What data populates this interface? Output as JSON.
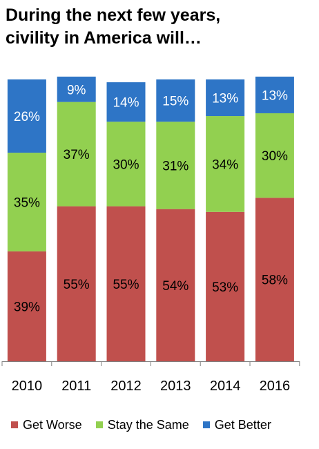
{
  "title_lines": [
    "During the next few years,",
    "civility in America will…"
  ],
  "colors": {
    "worse": "#c0504d",
    "same": "#92d050",
    "better": "#2e75c6",
    "axis": "#808080"
  },
  "chart_data": {
    "type": "bar",
    "stacked": true,
    "categories": [
      "2010",
      "2011",
      "2012",
      "2013",
      "2014",
      "2016"
    ],
    "series": [
      {
        "name": "Get Worse",
        "values": [
          39,
          55,
          55,
          54,
          53,
          58
        ],
        "labels": [
          "39%",
          "55%",
          "55%",
          "54%",
          "53%",
          "58%"
        ]
      },
      {
        "name": "Stay the Same",
        "values": [
          35,
          37,
          30,
          31,
          34,
          30
        ],
        "labels": [
          "35%",
          "37%",
          "30%",
          "31%",
          "34%",
          "30%"
        ]
      },
      {
        "name": "Get Better",
        "values": [
          26,
          9,
          14,
          15,
          13,
          13
        ],
        "labels": [
          "26%",
          "9%",
          "14%",
          "15%",
          "13%",
          "13%"
        ]
      }
    ],
    "ylim": [
      0,
      100
    ],
    "grid": false,
    "legend": "bottom"
  }
}
